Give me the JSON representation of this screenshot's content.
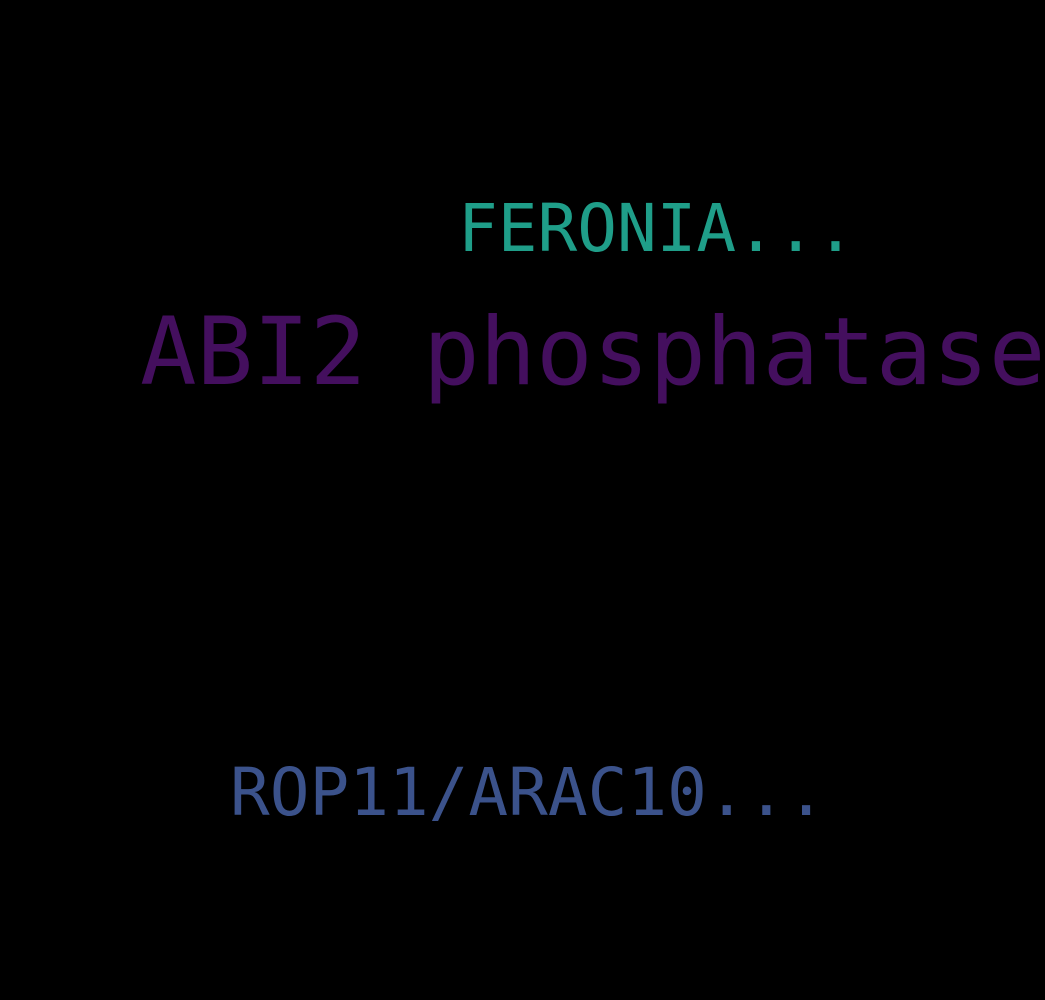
{
  "words": [
    {
      "text": "FERONIA...",
      "color": "#1f9e89"
    },
    {
      "text": "ABI2 phosphatase",
      "color": "#440f5e"
    },
    {
      "text": "ROP11/ARAC10...",
      "color": "#3b528b"
    }
  ]
}
